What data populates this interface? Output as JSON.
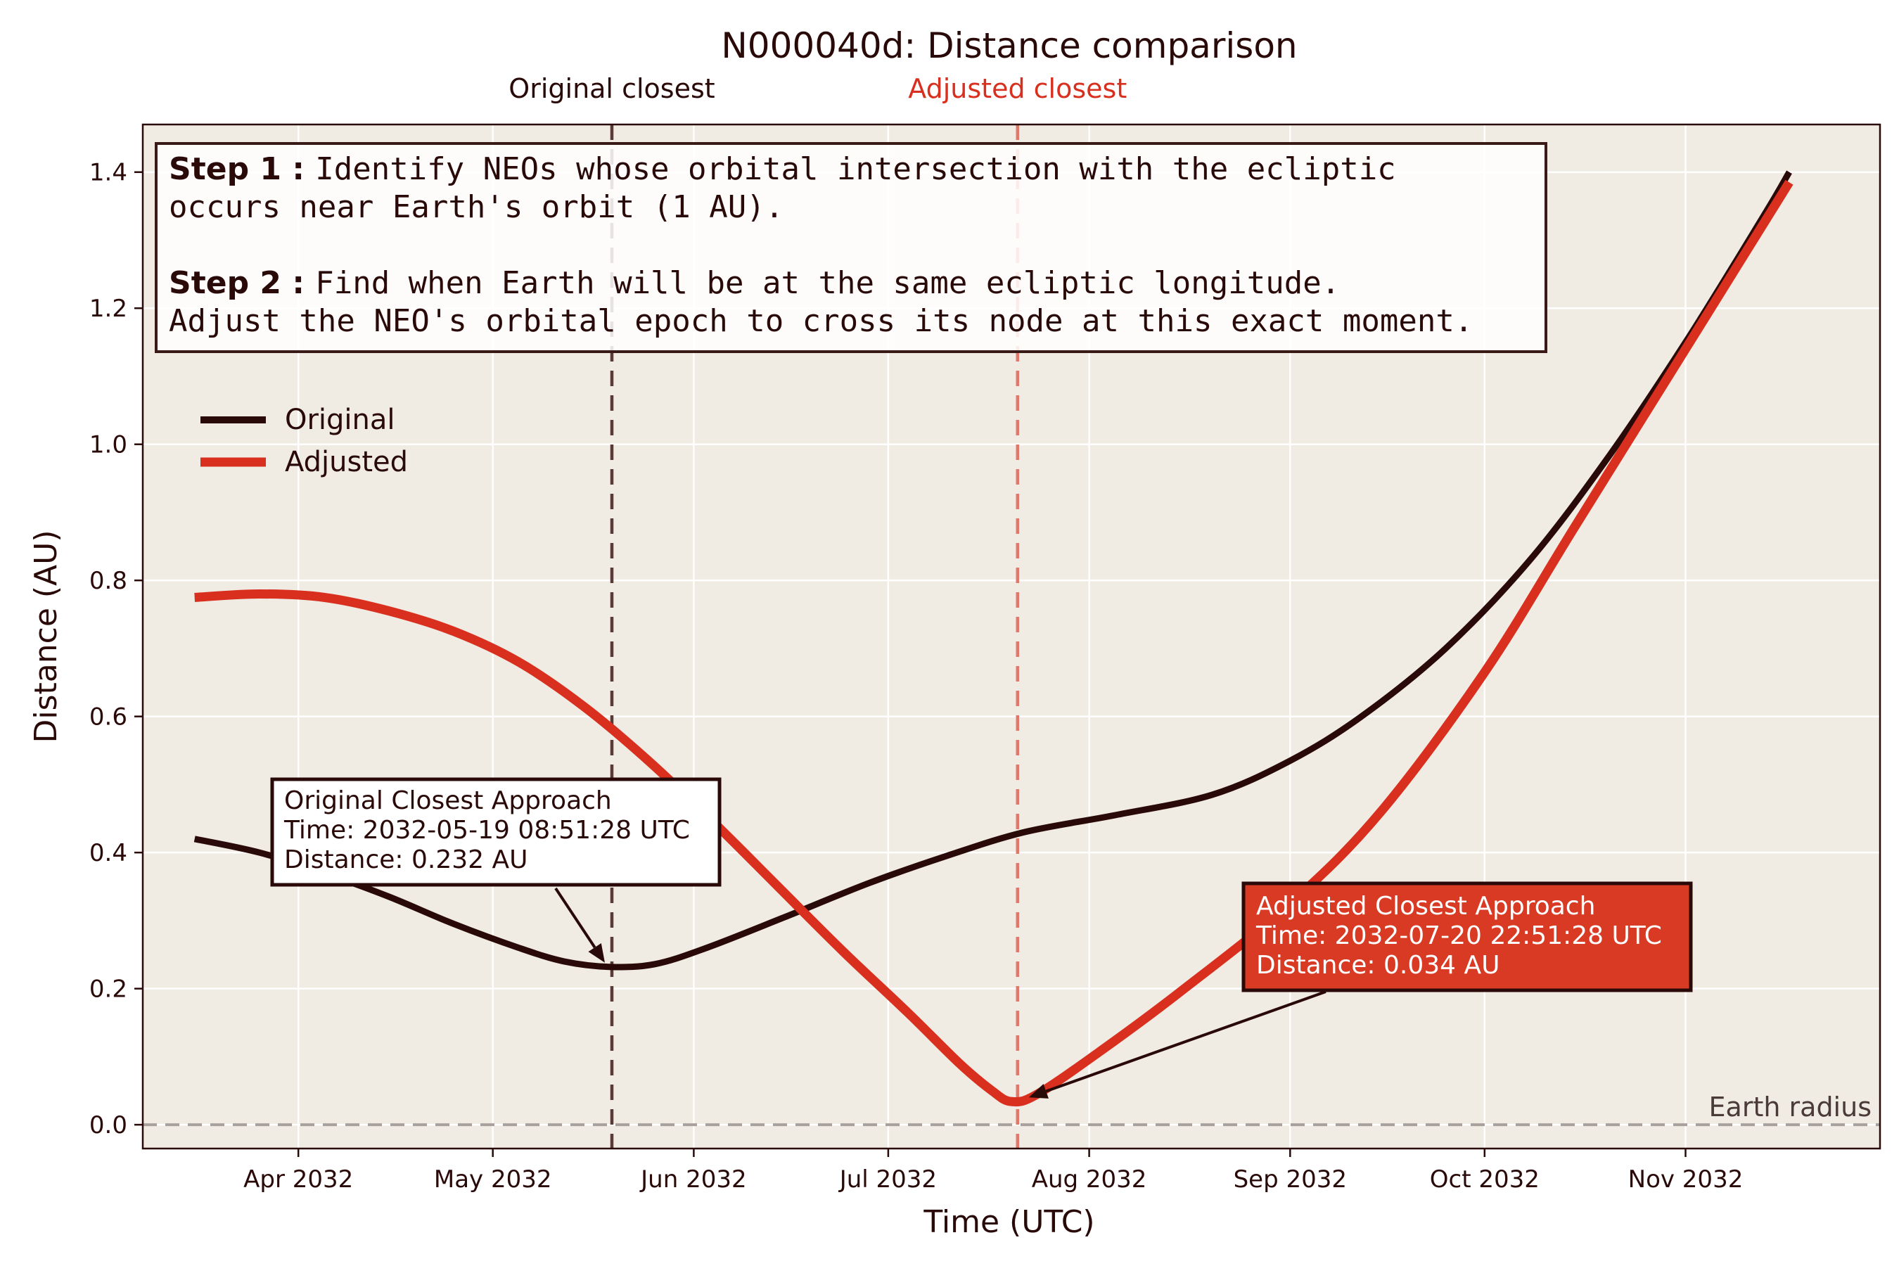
{
  "chart_data": {
    "type": "line",
    "title": "N000040d: Distance comparison",
    "xlabel": "Time (UTC)",
    "ylabel": "Distance (AU)",
    "x_range": [
      "2032-03-08",
      "2032-12-01"
    ],
    "ylim": [
      -0.035,
      1.47
    ],
    "grid": true,
    "legend_position": "upper-left",
    "x_ticks": [
      {
        "date": "2032-04-01",
        "label": "Apr 2032"
      },
      {
        "date": "2032-05-01",
        "label": "May 2032"
      },
      {
        "date": "2032-06-01",
        "label": "Jun 2032"
      },
      {
        "date": "2032-07-01",
        "label": "Jul 2032"
      },
      {
        "date": "2032-08-01",
        "label": "Aug 2032"
      },
      {
        "date": "2032-09-01",
        "label": "Sep 2032"
      },
      {
        "date": "2032-10-01",
        "label": "Oct 2032"
      },
      {
        "date": "2032-11-01",
        "label": "Nov 2032"
      }
    ],
    "y_ticks": [
      {
        "value": 0.0,
        "label": "0.0"
      },
      {
        "value": 0.2,
        "label": "0.2"
      },
      {
        "value": 0.4,
        "label": "0.4"
      },
      {
        "value": 0.6,
        "label": "0.6"
      },
      {
        "value": 0.8,
        "label": "0.8"
      },
      {
        "value": 1.0,
        "label": "1.0"
      },
      {
        "value": 1.2,
        "label": "1.2"
      },
      {
        "value": 1.4,
        "label": "1.4"
      }
    ],
    "series": [
      {
        "name": "Original",
        "color": "#2a0a08",
        "points": [
          [
            "2032-03-16",
            0.42
          ],
          [
            "2032-03-26",
            0.4
          ],
          [
            "2032-04-05",
            0.37
          ],
          [
            "2032-04-15",
            0.335
          ],
          [
            "2032-04-25",
            0.295
          ],
          [
            "2032-05-05",
            0.26
          ],
          [
            "2032-05-12",
            0.24
          ],
          [
            "2032-05-19",
            0.232
          ],
          [
            "2032-05-26",
            0.236
          ],
          [
            "2032-06-03",
            0.26
          ],
          [
            "2032-06-15",
            0.305
          ],
          [
            "2032-06-28",
            0.355
          ],
          [
            "2032-07-10",
            0.395
          ],
          [
            "2032-07-22",
            0.43
          ],
          [
            "2032-08-05",
            0.455
          ],
          [
            "2032-08-20",
            0.485
          ],
          [
            "2032-09-01",
            0.535
          ],
          [
            "2032-09-12",
            0.6
          ],
          [
            "2032-09-25",
            0.7
          ],
          [
            "2032-10-08",
            0.83
          ],
          [
            "2032-10-20",
            0.98
          ],
          [
            "2032-11-01",
            1.15
          ],
          [
            "2032-11-13",
            1.335
          ],
          [
            "2032-11-17",
            1.4
          ]
        ]
      },
      {
        "name": "Adjusted",
        "color": "#d92f1f",
        "points": [
          [
            "2032-03-16",
            0.775
          ],
          [
            "2032-03-26",
            0.78
          ],
          [
            "2032-04-05",
            0.775
          ],
          [
            "2032-04-15",
            0.755
          ],
          [
            "2032-04-25",
            0.725
          ],
          [
            "2032-05-05",
            0.68
          ],
          [
            "2032-05-15",
            0.615
          ],
          [
            "2032-05-25",
            0.535
          ],
          [
            "2032-06-04",
            0.445
          ],
          [
            "2032-06-14",
            0.35
          ],
          [
            "2032-06-24",
            0.255
          ],
          [
            "2032-07-04",
            0.165
          ],
          [
            "2032-07-12",
            0.09
          ],
          [
            "2032-07-17",
            0.05
          ],
          [
            "2032-07-20",
            0.034
          ],
          [
            "2032-07-24",
            0.045
          ],
          [
            "2032-08-03",
            0.11
          ],
          [
            "2032-08-15",
            0.195
          ],
          [
            "2032-09-01",
            0.325
          ],
          [
            "2032-09-15",
            0.46
          ],
          [
            "2032-10-01",
            0.665
          ],
          [
            "2032-10-15",
            0.88
          ],
          [
            "2032-11-01",
            1.14
          ],
          [
            "2032-11-17",
            1.385
          ]
        ]
      }
    ],
    "vertical_markers": [
      {
        "date": "2032-05-19T08:51:28",
        "label": "Original closest",
        "color": "#5a3a36"
      },
      {
        "date": "2032-07-20T22:51:28",
        "label": "Adjusted closest",
        "color": "#e0786c"
      }
    ],
    "earth_radius": {
      "value": 0.0,
      "label": "Earth radius"
    },
    "annotations": [
      {
        "lines": [
          "Original Closest Approach",
          "Time: 2032-05-19 08:51:28 UTC",
          "Distance: 0.232 AU"
        ],
        "target_date": "2032-05-19T08:51:28",
        "target_value": 0.232,
        "box_fill": "#ffffff",
        "text_color": "#2a0a08"
      },
      {
        "lines": [
          "Adjusted Closest Approach",
          "Time: 2032-07-20 22:51:28 UTC",
          "Distance: 0.034 AU"
        ],
        "target_date": "2032-07-20T22:51:28",
        "target_value": 0.034,
        "box_fill": "#d93a24",
        "text_color": "#ffffff"
      }
    ],
    "steps": [
      {
        "label": "Step 1 :",
        "lines": [
          "Identify NEOs whose orbital intersection with the ecliptic",
          "occurs near Earth's orbit (1 AU)."
        ]
      },
      {
        "label": "Step 2 :",
        "lines": [
          "Find when Earth will be at the same ecliptic longitude.",
          "Adjust the NEO's orbital epoch to cross its node at this exact moment."
        ]
      }
    ]
  }
}
